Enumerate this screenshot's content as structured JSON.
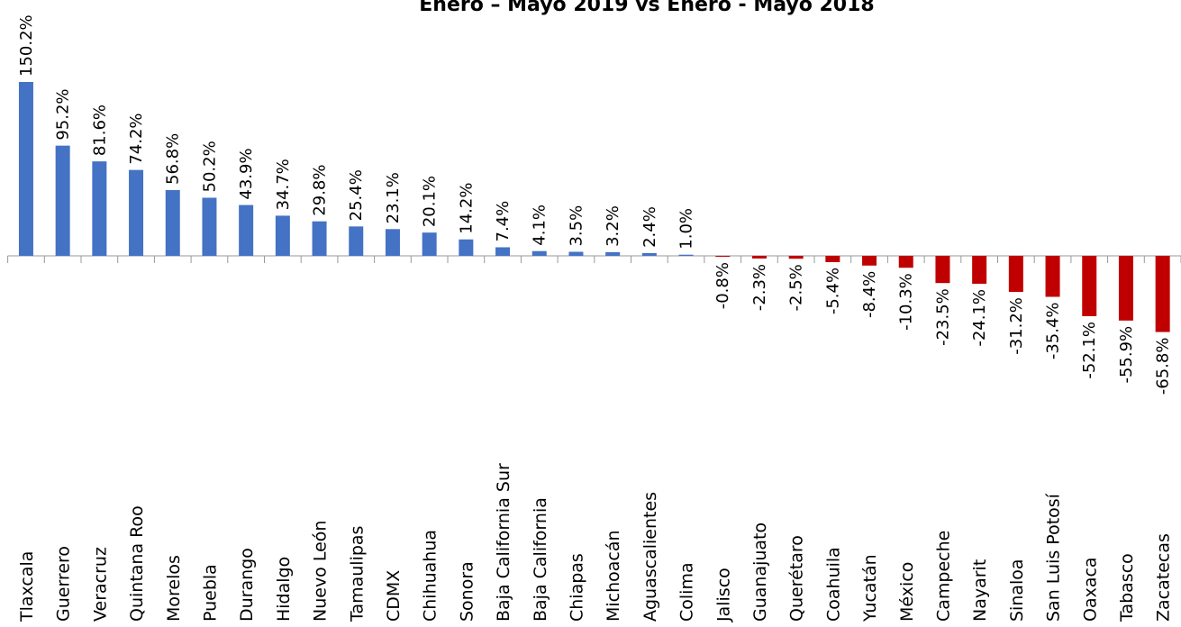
{
  "chart_data": {
    "type": "bar",
    "title": "Enero – Mayo 2019 vs Enero - Mayo 2018",
    "categories": [
      "Tlaxcala",
      "Guerrero",
      "Veracruz",
      "Quintana Roo",
      "Morelos",
      "Puebla",
      "Durango",
      "Hidalgo",
      "Nuevo León",
      "Tamaulipas",
      "CDMX",
      "Chihuahua",
      "Sonora",
      "Baja California Sur",
      "Baja California",
      "Chiapas",
      "Michoacán",
      "Aguascalientes",
      "Colima",
      "Jalisco",
      "Guanajuato",
      "Querétaro",
      "Coahuila",
      "Yucatán",
      "México",
      "Campeche",
      "Nayarit",
      "Sinaloa",
      "San Luis Potosí",
      "Oaxaca",
      "Tabasco",
      "Zacatecas"
    ],
    "values": [
      150.2,
      95.2,
      81.6,
      74.2,
      56.8,
      50.2,
      43.9,
      34.7,
      29.8,
      25.4,
      23.1,
      20.1,
      14.2,
      7.4,
      4.1,
      3.5,
      3.2,
      2.4,
      1.0,
      -0.8,
      -2.3,
      -2.5,
      -5.4,
      -8.4,
      -10.3,
      -23.5,
      -24.1,
      -31.2,
      -35.4,
      -52.1,
      -55.9,
      -65.8
    ],
    "value_labels": [
      "150.2%",
      "95.2%",
      "81.6%",
      "74.2%",
      "56.8%",
      "50.2%",
      "43.9%",
      "34.7%",
      "29.8%",
      "25.4%",
      "23.1%",
      "20.1%",
      "14.2%",
      "7.4%",
      "4.1%",
      "3.5%",
      "3.2%",
      "2.4%",
      "1.0%",
      "-0.8%",
      "-2.3%",
      "-2.5%",
      "-5.4%",
      "-8.4%",
      "-10.3%",
      "-23.5%",
      "-24.1%",
      "-31.2%",
      "-35.4%",
      "-52.1%",
      "-55.9%",
      "-65.8%"
    ],
    "color_positive": "#4472c4",
    "color_negative": "#c00000"
  }
}
